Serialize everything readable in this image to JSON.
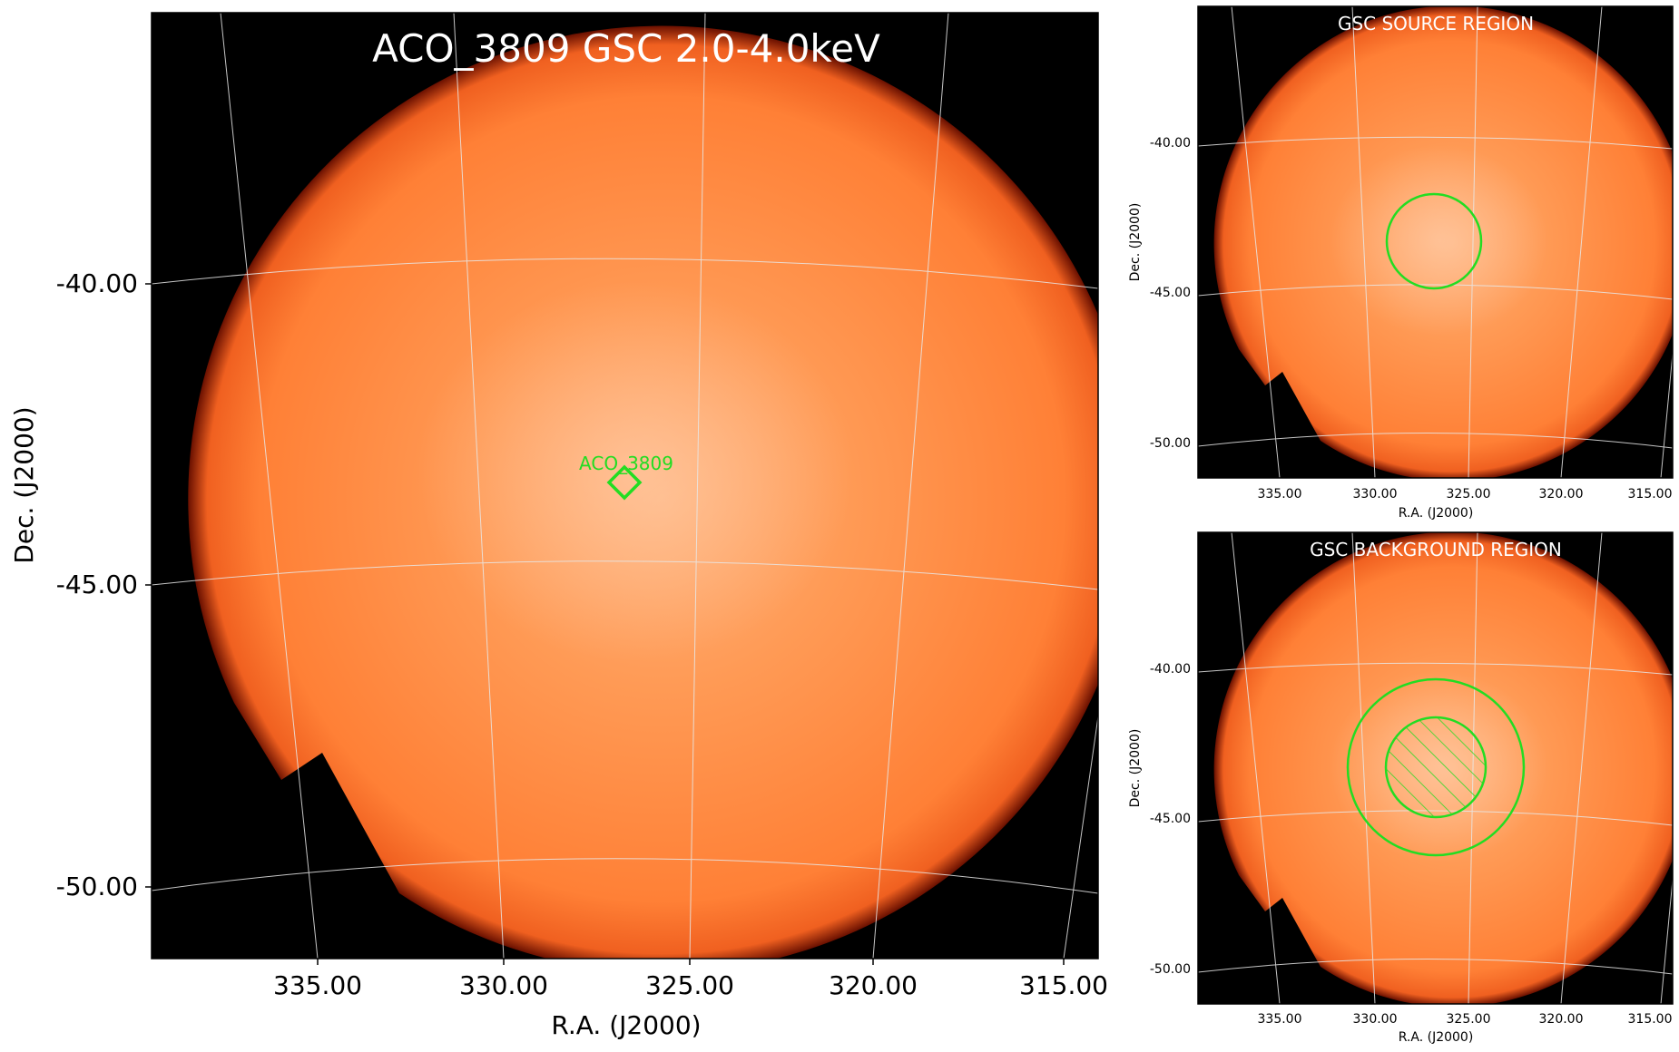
{
  "main": {
    "title": "ACO_3809 GSC 2.0-4.0keV",
    "source_label": "ACO_3809",
    "ylabel": "Dec. (J2000)",
    "xlabel": "R.A. (J2000)",
    "yticks": [
      "-40.00",
      "-45.00",
      "-50.00"
    ],
    "xticks": [
      "335.00",
      "330.00",
      "325.00",
      "320.00",
      "315.00"
    ]
  },
  "source_panel": {
    "title": "GSC SOURCE REGION",
    "ylabel": "Dec. (J2000)",
    "xlabel": "R.A. (J2000)",
    "yticks": [
      "-40.00",
      "-45.00",
      "-50.00"
    ],
    "xticks": [
      "335.00",
      "330.00",
      "325.00",
      "320.00",
      "315.00"
    ]
  },
  "background_panel": {
    "title": "GSC BACKGROUND REGION",
    "ylabel": "Dec. (J2000)",
    "xlabel": "R.A. (J2000)",
    "yticks": [
      "-40.00",
      "-45.00",
      "-50.00"
    ],
    "xticks": [
      "335.00",
      "330.00",
      "325.00",
      "320.00",
      "315.00"
    ]
  },
  "colors": {
    "region": "#22dd22",
    "disk": "#ff7a2a",
    "sky": "#000000",
    "grid": "#e8e8e8"
  }
}
